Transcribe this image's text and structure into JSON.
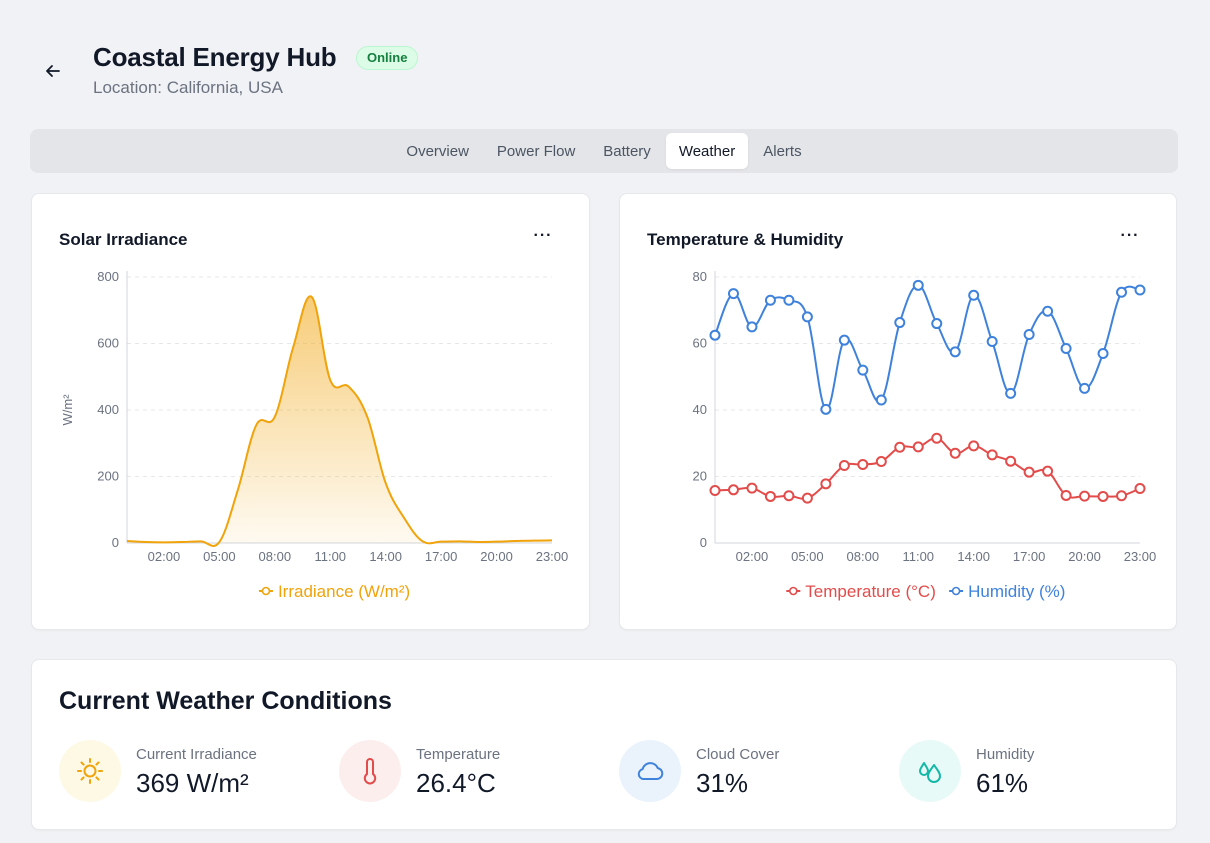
{
  "header": {
    "title": "Coastal Energy Hub",
    "status": "Online",
    "location": "Location: California, USA"
  },
  "tabs": [
    {
      "label": "Overview",
      "active": false
    },
    {
      "label": "Power Flow",
      "active": false
    },
    {
      "label": "Battery",
      "active": false
    },
    {
      "label": "Weather",
      "active": true
    },
    {
      "label": "Alerts",
      "active": false
    }
  ],
  "more_label": "···",
  "chart_data": [
    {
      "type": "area",
      "title": "Solar Irradiance",
      "xlabel": "",
      "ylabel": "W/m²",
      "ylim": [
        0,
        800
      ],
      "yticks": [
        "0",
        "200",
        "400",
        "600",
        "800"
      ],
      "xticks": [
        "02:00",
        "05:00",
        "08:00",
        "11:00",
        "14:00",
        "17:00",
        "20:00",
        "23:00"
      ],
      "x": [
        "00:00",
        "01:00",
        "02:00",
        "03:00",
        "04:00",
        "05:00",
        "06:00",
        "07:00",
        "08:00",
        "09:00",
        "10:00",
        "11:00",
        "12:00",
        "13:00",
        "14:00",
        "15:00",
        "16:00",
        "17:00",
        "18:00",
        "19:00",
        "20:00",
        "21:00",
        "22:00",
        "23:00"
      ],
      "series": [
        {
          "name": "Irradiance (W/m²)",
          "color": "#f0a30a",
          "values": [
            6,
            3,
            2,
            3,
            5,
            3,
            160,
            355,
            380,
            590,
            740,
            490,
            470,
            380,
            180,
            75,
            5,
            4,
            5,
            3,
            4,
            6,
            7,
            8
          ]
        }
      ],
      "grid": true,
      "legend": "bottom-center"
    },
    {
      "type": "line",
      "title": "Temperature & Humidity",
      "xlabel": "",
      "ylabel": "",
      "ylim": [
        0,
        80
      ],
      "yticks": [
        "0",
        "20",
        "40",
        "60",
        "80"
      ],
      "xticks": [
        "02:00",
        "05:00",
        "08:00",
        "11:00",
        "14:00",
        "17:00",
        "20:00",
        "23:00"
      ],
      "x": [
        "00:00",
        "01:00",
        "02:00",
        "03:00",
        "04:00",
        "05:00",
        "06:00",
        "07:00",
        "08:00",
        "09:00",
        "10:00",
        "11:00",
        "12:00",
        "13:00",
        "14:00",
        "15:00",
        "16:00",
        "17:00",
        "18:00",
        "19:00",
        "20:00",
        "21:00",
        "22:00",
        "23:00"
      ],
      "series": [
        {
          "name": "Temperature (°C)",
          "color": "#e24c4b",
          "values": [
            15.8,
            16,
            16.5,
            14,
            14.2,
            13.5,
            17.8,
            23.3,
            23.6,
            24.5,
            28.8,
            28.9,
            31.5,
            27,
            29.2,
            26.5,
            24.6,
            21.3,
            21.6,
            14.3,
            14.1,
            14,
            14.2,
            16.4
          ]
        },
        {
          "name": "Humidity (%)",
          "color": "#3f82db",
          "values": [
            62.5,
            75,
            65,
            73,
            73,
            68,
            40.2,
            61,
            52,
            43,
            66.3,
            77.5,
            66,
            57.5,
            74.5,
            60.6,
            45,
            62.7,
            69.7,
            58.5,
            46.5,
            57,
            75.4,
            76.1
          ]
        }
      ],
      "grid": true,
      "legend": "bottom-center"
    }
  ],
  "weather": {
    "title": "Current Weather Conditions",
    "metrics": [
      {
        "label": "Current Irradiance",
        "value": "369 W/m²",
        "icon": "sun-icon",
        "color": "#f0a30a",
        "bg": "#fef9e4"
      },
      {
        "label": "Temperature",
        "value": "26.4°C",
        "icon": "thermometer-icon",
        "color": "#e24c4b",
        "bg": "#fdeeee"
      },
      {
        "label": "Cloud Cover",
        "value": "31%",
        "icon": "cloud-icon",
        "color": "#3f82db",
        "bg": "#eaf2fc"
      },
      {
        "label": "Humidity",
        "value": "61%",
        "icon": "droplets-icon",
        "color": "#14b8a6",
        "bg": "#e8faf7"
      }
    ]
  }
}
